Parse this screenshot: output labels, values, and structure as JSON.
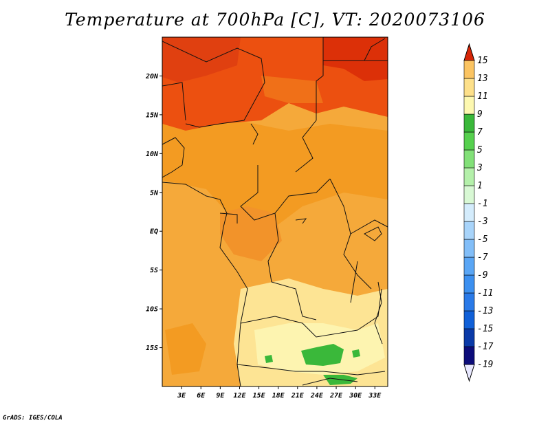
{
  "title": "Temperature at 700hPa [C], VT: 2020073106",
  "credit": "GrADS: IGES/COLA",
  "map": {
    "lon_range": [
      0,
      35
    ],
    "lat_range": [
      -20,
      25
    ],
    "lat_ticks": [
      {
        "lat": 20,
        "label": "20N"
      },
      {
        "lat": 15,
        "label": "15N"
      },
      {
        "lat": 10,
        "label": "10N"
      },
      {
        "lat": 5,
        "label": "5N"
      },
      {
        "lat": 0,
        "label": "EQ"
      },
      {
        "lat": -5,
        "label": "5S"
      },
      {
        "lat": -10,
        "label": "10S"
      },
      {
        "lat": -15,
        "label": "15S"
      }
    ],
    "lon_ticks": [
      {
        "lon": 3,
        "label": "3E"
      },
      {
        "lon": 6,
        "label": "6E"
      },
      {
        "lon": 9,
        "label": "9E"
      },
      {
        "lon": 12,
        "label": "12E"
      },
      {
        "lon": 15,
        "label": "15E"
      },
      {
        "lon": 18,
        "label": "18E"
      },
      {
        "lon": 21,
        "label": "21E"
      },
      {
        "lon": 24,
        "label": "24E"
      },
      {
        "lon": 27,
        "label": "27E"
      },
      {
        "lon": 30,
        "label": "30E"
      },
      {
        "lon": 33,
        "label": "33E"
      }
    ]
  },
  "colorbar": {
    "colors": [
      "#e8e8ff",
      "#0c0c7a",
      "#0a3aa8",
      "#1060d8",
      "#2a7ae8",
      "#3c90f0",
      "#5aa6f5",
      "#82bef8",
      "#a8d4fa",
      "#d4ecfc",
      "#d8f8d4",
      "#b4f0aa",
      "#82e078",
      "#56d04e",
      "#3ab83a",
      "#fdf8b0",
      "#fde08a",
      "#fbc462",
      "#f8a232",
      "#f27c18",
      "#e85410",
      "#d62608"
    ],
    "labels": [
      "-19",
      "-17",
      "-15",
      "-13",
      "-11",
      "-9",
      "-7",
      "-5",
      "-3",
      "-1",
      "1",
      "3",
      "5",
      "7",
      "9",
      "11",
      "13",
      "15"
    ]
  },
  "regions": [
    {
      "name": "north-red",
      "color": "#ec5010"
    },
    {
      "name": "northeast-darkred",
      "color": "#dc3008"
    },
    {
      "name": "sahel-orange",
      "color": "#f39b22"
    },
    {
      "name": "central-orange",
      "color": "#f5a93a"
    },
    {
      "name": "south-yellow",
      "color": "#fde494"
    },
    {
      "name": "south-paleyellow",
      "color": "#fdf4b0"
    },
    {
      "name": "green-patch",
      "color": "#3ab83a"
    }
  ]
}
